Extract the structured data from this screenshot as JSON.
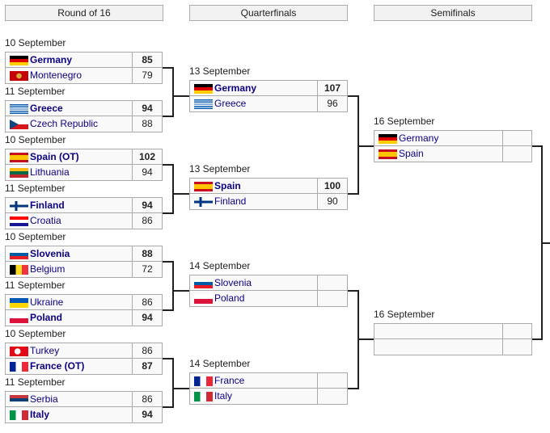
{
  "headers": [
    "Round of 16",
    "Quarterfinals",
    "Semifinals"
  ],
  "rounds": [
    {
      "matches": [
        {
          "date": "10 September",
          "teams": [
            {
              "name": "Germany",
              "flag": "de",
              "score": "85",
              "winner": true
            },
            {
              "name": "Montenegro",
              "flag": "me",
              "score": "79"
            }
          ]
        },
        {
          "date": "11 September",
          "teams": [
            {
              "name": "Greece",
              "flag": "gr",
              "score": "94",
              "winner": true
            },
            {
              "name": "Czech Republic",
              "flag": "cz",
              "score": "88"
            }
          ]
        },
        {
          "date": "10 September",
          "teams": [
            {
              "name": "Spain (OT)",
              "flag": "es",
              "score": "102",
              "winner": true
            },
            {
              "name": "Lithuania",
              "flag": "lt",
              "score": "94"
            }
          ]
        },
        {
          "date": "11 September",
          "teams": [
            {
              "name": "Finland",
              "flag": "fi",
              "score": "94",
              "winner": true
            },
            {
              "name": "Croatia",
              "flag": "hr",
              "score": "86"
            }
          ]
        },
        {
          "date": "10 September",
          "teams": [
            {
              "name": "Slovenia",
              "flag": "si",
              "score": "88",
              "winner": true
            },
            {
              "name": "Belgium",
              "flag": "be",
              "score": "72"
            }
          ]
        },
        {
          "date": "11 September",
          "teams": [
            {
              "name": "Ukraine",
              "flag": "ua",
              "score": "86"
            },
            {
              "name": "Poland",
              "flag": "pl",
              "score": "94",
              "winner": true
            }
          ]
        },
        {
          "date": "10 September",
          "teams": [
            {
              "name": "Turkey",
              "flag": "tr",
              "score": "86"
            },
            {
              "name": "France (OT)",
              "flag": "fr",
              "score": "87",
              "winner": true
            }
          ]
        },
        {
          "date": "11 September",
          "teams": [
            {
              "name": "Serbia",
              "flag": "rs",
              "score": "86"
            },
            {
              "name": "Italy",
              "flag": "it",
              "score": "94",
              "winner": true
            }
          ]
        }
      ]
    },
    {
      "matches": [
        {
          "date": "13 September",
          "teams": [
            {
              "name": "Germany",
              "flag": "de",
              "score": "107",
              "winner": true
            },
            {
              "name": "Greece",
              "flag": "gr",
              "score": "96"
            }
          ]
        },
        {
          "date": "13 September",
          "teams": [
            {
              "name": "Spain",
              "flag": "es",
              "score": "100",
              "winner": true
            },
            {
              "name": "Finland",
              "flag": "fi",
              "score": "90"
            }
          ]
        },
        {
          "date": "14 September",
          "teams": [
            {
              "name": "Slovenia",
              "flag": "si",
              "score": ""
            },
            {
              "name": "Poland",
              "flag": "pl",
              "score": ""
            }
          ]
        },
        {
          "date": "14 September",
          "teams": [
            {
              "name": "France",
              "flag": "fr",
              "score": ""
            },
            {
              "name": "Italy",
              "flag": "it",
              "score": ""
            }
          ]
        }
      ]
    },
    {
      "matches": [
        {
          "date": "16 September",
          "teams": [
            {
              "name": "Germany",
              "flag": "de",
              "score": ""
            },
            {
              "name": "Spain",
              "flag": "es",
              "score": ""
            }
          ]
        },
        {
          "date": "16 September",
          "teams": [
            {
              "name": "",
              "flag": "",
              "score": ""
            },
            {
              "name": "",
              "flag": "",
              "score": ""
            }
          ]
        }
      ]
    }
  ]
}
